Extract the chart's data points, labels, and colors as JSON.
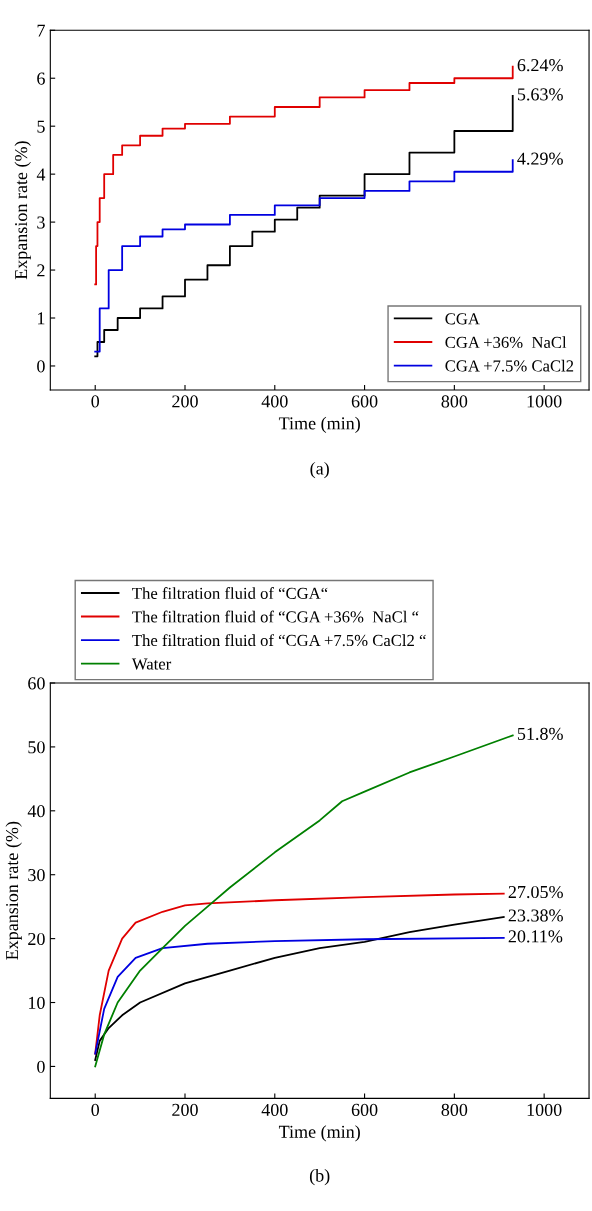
{
  "chart_data": [
    {
      "type": "step",
      "xlabel": "Time (min)",
      "ylabel": "Expansion rate (%)",
      "xlim": [
        -100,
        1100
      ],
      "ylim": [
        -0.5,
        7
      ],
      "xticks": [
        0,
        200,
        400,
        600,
        800,
        1000
      ],
      "yticks": [
        0,
        1,
        2,
        3,
        4,
        5,
        6,
        7
      ],
      "legend": "bottom right",
      "line_style": "solid",
      "marker": "none",
      "series": [
        {
          "name": "CGA",
          "color": "#000000",
          "x": [
            0,
            5,
            20,
            50,
            100,
            150,
            200,
            250,
            300,
            350,
            400,
            450,
            500,
            600,
            700,
            800,
            930
          ],
          "values": [
            0.2,
            0.5,
            0.75,
            1.0,
            1.2,
            1.45,
            1.8,
            2.1,
            2.5,
            2.8,
            3.05,
            3.3,
            3.55,
            4.0,
            4.45,
            4.9,
            5.63
          ],
          "value_labels": [
            null,
            null,
            null,
            null,
            null,
            null,
            null,
            null,
            null,
            null,
            null,
            null,
            null,
            null,
            null,
            null,
            "5.63%"
          ]
        },
        {
          "name": "CGA +36%  NaCl",
          "color": "#e00000",
          "x": [
            0,
            2,
            5,
            10,
            20,
            40,
            60,
            100,
            150,
            200,
            300,
            400,
            500,
            600,
            700,
            800,
            930
          ],
          "values": [
            1.7,
            2.5,
            3.0,
            3.5,
            4.0,
            4.4,
            4.6,
            4.8,
            4.95,
            5.05,
            5.2,
            5.4,
            5.6,
            5.75,
            5.9,
            6.0,
            6.24
          ],
          "value_labels": [
            null,
            null,
            null,
            null,
            null,
            null,
            null,
            null,
            null,
            null,
            null,
            null,
            null,
            null,
            null,
            null,
            "6.24%"
          ]
        },
        {
          "name": "CGA +7.5% CaCl2",
          "color": "#0000e0",
          "x": [
            0,
            10,
            30,
            60,
            100,
            150,
            200,
            300,
            400,
            500,
            600,
            700,
            800,
            930
          ],
          "values": [
            0.3,
            1.2,
            2.0,
            2.5,
            2.7,
            2.85,
            2.95,
            3.15,
            3.35,
            3.5,
            3.65,
            3.85,
            4.05,
            4.29
          ],
          "value_labels": [
            null,
            null,
            null,
            null,
            null,
            null,
            null,
            null,
            null,
            null,
            null,
            null,
            null,
            "4.29%"
          ]
        }
      ],
      "annotations": [
        "(a)"
      ]
    },
    {
      "type": "line",
      "xlabel": "Time (min)",
      "ylabel": "Expansion rate (%)",
      "xlim": [
        -100,
        1100
      ],
      "ylim": [
        -5,
        60
      ],
      "xticks": [
        0,
        200,
        400,
        600,
        800,
        1000
      ],
      "yticks": [
        0,
        10,
        20,
        30,
        40,
        50,
        60
      ],
      "legend": "top",
      "line_style": "solid",
      "marker": "none",
      "series": [
        {
          "name": "The filtration fluid of “CGA“",
          "color": "#000000",
          "x": [
            0,
            10,
            30,
            60,
            100,
            200,
            300,
            400,
            500,
            600,
            700,
            800,
            910
          ],
          "values": [
            1,
            4,
            6,
            8,
            10,
            13,
            15,
            17,
            18.5,
            19.5,
            21,
            22.2,
            23.38
          ],
          "value_labels": [
            null,
            null,
            null,
            null,
            null,
            null,
            null,
            null,
            null,
            null,
            null,
            null,
            "23.38%"
          ]
        },
        {
          "name": "The filtration fluid of “CGA +36%  NaCl “",
          "color": "#e00000",
          "x": [
            0,
            10,
            30,
            60,
            90,
            150,
            200,
            250,
            400,
            600,
            800,
            910
          ],
          "values": [
            2,
            8,
            15,
            20,
            22.5,
            24.2,
            25.2,
            25.5,
            26,
            26.5,
            26.9,
            27.05
          ],
          "value_labels": [
            null,
            null,
            null,
            null,
            null,
            null,
            null,
            null,
            null,
            null,
            null,
            "27.05%"
          ]
        },
        {
          "name": "The filtration fluid of “CGA +7.5% CaCl2 “",
          "color": "#0000e0",
          "x": [
            0,
            20,
            50,
            90,
            150,
            250,
            400,
            600,
            910
          ],
          "values": [
            2,
            9,
            14,
            17,
            18.5,
            19.2,
            19.6,
            19.9,
            20.11
          ],
          "value_labels": [
            null,
            null,
            null,
            null,
            null,
            null,
            null,
            null,
            "20.11%"
          ]
        },
        {
          "name": "Water",
          "color": "#008000",
          "x": [
            0,
            20,
            50,
            100,
            150,
            200,
            260,
            300,
            400,
            500,
            550,
            600,
            700,
            800,
            930
          ],
          "values": [
            0,
            5,
            10,
            15,
            18.5,
            22,
            25.6,
            28,
            33.5,
            38.5,
            41.5,
            43,
            46,
            48.5,
            51.8
          ],
          "value_labels": [
            null,
            null,
            null,
            null,
            null,
            null,
            null,
            null,
            null,
            null,
            null,
            null,
            null,
            null,
            "51.8%"
          ]
        }
      ],
      "annotations": [
        "(b)"
      ]
    }
  ]
}
